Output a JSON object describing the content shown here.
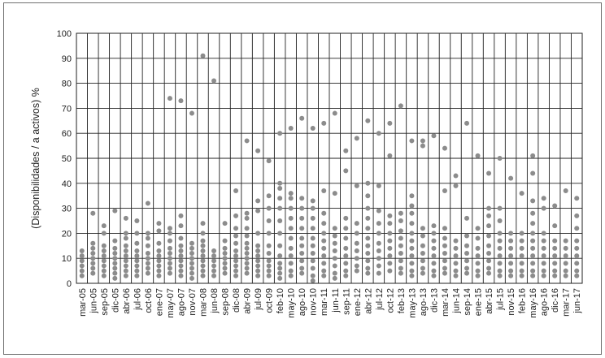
{
  "chart_data": {
    "type": "scatter",
    "ylabel": "(Disponibilidades / a activos) %",
    "ylim": [
      0,
      100
    ],
    "yticks": [
      0,
      10,
      20,
      30,
      40,
      50,
      60,
      70,
      80,
      90,
      100
    ],
    "grid": true,
    "point_color": "#8c8c8c",
    "x_labels": [
      "mar-05",
      "jun-05",
      "sep-05",
      "dic-05",
      "abr-06",
      "jul-06",
      "oct-06",
      "ene-07",
      "may-07",
      "ago-07",
      "nov-07",
      "mar-08",
      "jun-08",
      "sep-08",
      "dic-08",
      "abr-09",
      "jul-09",
      "oct-09",
      "feb-10",
      "may-10",
      "ago-10",
      "nov-10",
      "mar-11",
      "jun-11",
      "sep-11",
      "ene-12",
      "abr-12",
      "jul-12",
      "oct-12",
      "feb-13",
      "may-13",
      "ago-13",
      "dic-13",
      "mar-14",
      "jun-14",
      "sep-14",
      "ene-15",
      "abr-15",
      "jul-15",
      "nov-15",
      "feb-16",
      "may-16",
      "ago-16",
      "dic-16",
      "mar-17",
      "jun-17"
    ],
    "series": [
      {
        "x": "mar-05",
        "y": [
          3,
          5,
          7,
          9,
          11,
          13
        ]
      },
      {
        "x": "jun-05",
        "y": [
          4,
          6,
          8,
          10,
          12,
          14,
          16,
          28
        ]
      },
      {
        "x": "sep-05",
        "y": [
          3,
          5,
          7,
          9,
          11,
          13,
          15,
          20,
          23
        ]
      },
      {
        "x": "dic-05",
        "y": [
          2,
          4,
          6,
          8,
          10,
          12,
          14,
          17,
          29
        ]
      },
      {
        "x": "abr-06",
        "y": [
          3,
          5,
          7,
          9,
          11,
          13,
          15,
          18,
          20,
          26
        ]
      },
      {
        "x": "jul-06",
        "y": [
          3,
          5,
          7,
          9,
          11,
          13,
          16,
          20,
          25
        ]
      },
      {
        "x": "oct-06",
        "y": [
          4,
          6,
          8,
          10,
          12,
          15,
          18,
          20,
          32
        ]
      },
      {
        "x": "ene-07",
        "y": [
          3,
          5,
          7,
          9,
          11,
          13,
          16,
          21,
          24
        ]
      },
      {
        "x": "may-07",
        "y": [
          4,
          6,
          8,
          10,
          12,
          14,
          17,
          20,
          22,
          74
        ]
      },
      {
        "x": "ago-07",
        "y": [
          3,
          5,
          7,
          9,
          11,
          13,
          15,
          18,
          23,
          27,
          73
        ]
      },
      {
        "x": "nov-07",
        "y": [
          2,
          4,
          6,
          8,
          10,
          12,
          14,
          16,
          68
        ]
      },
      {
        "x": "mar-08",
        "y": [
          3,
          5,
          7,
          9,
          11,
          13,
          15,
          17,
          20,
          24,
          91
        ]
      },
      {
        "x": "jun-08",
        "y": [
          3,
          5,
          7,
          9,
          11,
          13,
          81
        ]
      },
      {
        "x": "sep-08",
        "y": [
          4,
          6,
          8,
          10,
          12,
          14,
          17,
          24
        ]
      },
      {
        "x": "dic-08",
        "y": [
          3,
          5,
          7,
          9,
          11,
          13,
          16,
          19,
          22,
          27,
          37
        ]
      },
      {
        "x": "abr-09",
        "y": [
          4,
          6,
          8,
          10,
          12,
          14,
          16,
          19,
          22,
          26,
          28,
          57
        ]
      },
      {
        "x": "jul-09",
        "y": [
          3,
          5,
          7,
          9,
          11,
          13,
          15,
          20,
          29,
          33,
          53
        ]
      },
      {
        "x": "oct-09",
        "y": [
          3,
          5,
          7,
          9,
          12,
          15,
          20,
          25,
          30,
          35,
          49
        ]
      },
      {
        "x": "feb-10",
        "y": [
          2,
          4,
          6,
          8,
          11,
          15,
          20,
          25,
          30,
          34,
          38,
          40,
          60
        ]
      },
      {
        "x": "may-10",
        "y": [
          3,
          5,
          8,
          11,
          14,
          18,
          22,
          26,
          30,
          34,
          36,
          62
        ]
      },
      {
        "x": "ago-10",
        "y": [
          4,
          6,
          9,
          12,
          15,
          18,
          22,
          26,
          30,
          34,
          66
        ]
      },
      {
        "x": "nov-10",
        "y": [
          1,
          3,
          6,
          9,
          12,
          15,
          18,
          22,
          26,
          30,
          33,
          62
        ]
      },
      {
        "x": "mar-11",
        "y": [
          3,
          5,
          8,
          11,
          14,
          17,
          20,
          24,
          28,
          37,
          64
        ]
      },
      {
        "x": "jun-11",
        "y": [
          2,
          4,
          7,
          10,
          13,
          16,
          19,
          22,
          36,
          68
        ]
      },
      {
        "x": "sep-11",
        "y": [
          3,
          5,
          8,
          11,
          14,
          18,
          22,
          26,
          45,
          53
        ]
      },
      {
        "x": "ene-12",
        "y": [
          5,
          7,
          10,
          13,
          16,
          20,
          24,
          39,
          58
        ]
      },
      {
        "x": "abr-12",
        "y": [
          4,
          6,
          9,
          12,
          15,
          18,
          22,
          26,
          30,
          35,
          40,
          65
        ]
      },
      {
        "x": "jul-12",
        "y": [
          4,
          7,
          10,
          13,
          16,
          20,
          24,
          29,
          39,
          60
        ]
      },
      {
        "x": "oct-12",
        "y": [
          5,
          8,
          11,
          14,
          17,
          20,
          24,
          27,
          51,
          64
        ]
      },
      {
        "x": "feb-13",
        "y": [
          4,
          6,
          9,
          12,
          15,
          18,
          21,
          25,
          28,
          71
        ]
      },
      {
        "x": "may-13",
        "y": [
          3,
          5,
          8,
          11,
          14,
          17,
          20,
          24,
          28,
          31,
          35,
          57
        ]
      },
      {
        "x": "ago-13",
        "y": [
          4,
          6,
          9,
          12,
          15,
          19,
          22,
          55,
          57
        ]
      },
      {
        "x": "dic-13",
        "y": [
          3,
          5,
          8,
          11,
          14,
          17,
          20,
          23,
          59
        ]
      },
      {
        "x": "mar-14",
        "y": [
          4,
          6,
          9,
          12,
          15,
          18,
          22,
          37,
          54
        ]
      },
      {
        "x": "jun-14",
        "y": [
          3,
          5,
          8,
          11,
          14,
          17,
          39,
          43
        ]
      },
      {
        "x": "sep-14",
        "y": [
          4,
          6,
          9,
          12,
          15,
          19,
          26,
          64
        ]
      },
      {
        "x": "ene-15",
        "y": [
          3,
          5,
          8,
          11,
          14,
          18,
          22,
          51
        ]
      },
      {
        "x": "abr-15",
        "y": [
          4,
          6,
          9,
          12,
          15,
          19,
          23,
          27,
          30,
          44
        ]
      },
      {
        "x": "jul-15",
        "y": [
          3,
          5,
          8,
          11,
          14,
          17,
          20,
          25,
          30,
          50
        ]
      },
      {
        "x": "nov-15",
        "y": [
          3,
          5,
          8,
          11,
          14,
          17,
          20,
          42
        ]
      },
      {
        "x": "feb-16",
        "y": [
          3,
          5,
          8,
          11,
          14,
          17,
          20,
          36
        ]
      },
      {
        "x": "may-16",
        "y": [
          3,
          5,
          8,
          11,
          14,
          17,
          20,
          24,
          28,
          33,
          44,
          51
        ]
      },
      {
        "x": "ago-16",
        "y": [
          3,
          5,
          8,
          11,
          14,
          17,
          20,
          30,
          34
        ]
      },
      {
        "x": "dic-16",
        "y": [
          3,
          5,
          8,
          11,
          14,
          17,
          23,
          31
        ]
      },
      {
        "x": "mar-17",
        "y": [
          3,
          5,
          8,
          11,
          14,
          17,
          37
        ]
      },
      {
        "x": "jun-17",
        "y": [
          3,
          5,
          8,
          11,
          14,
          17,
          22,
          27,
          34
        ]
      }
    ]
  }
}
